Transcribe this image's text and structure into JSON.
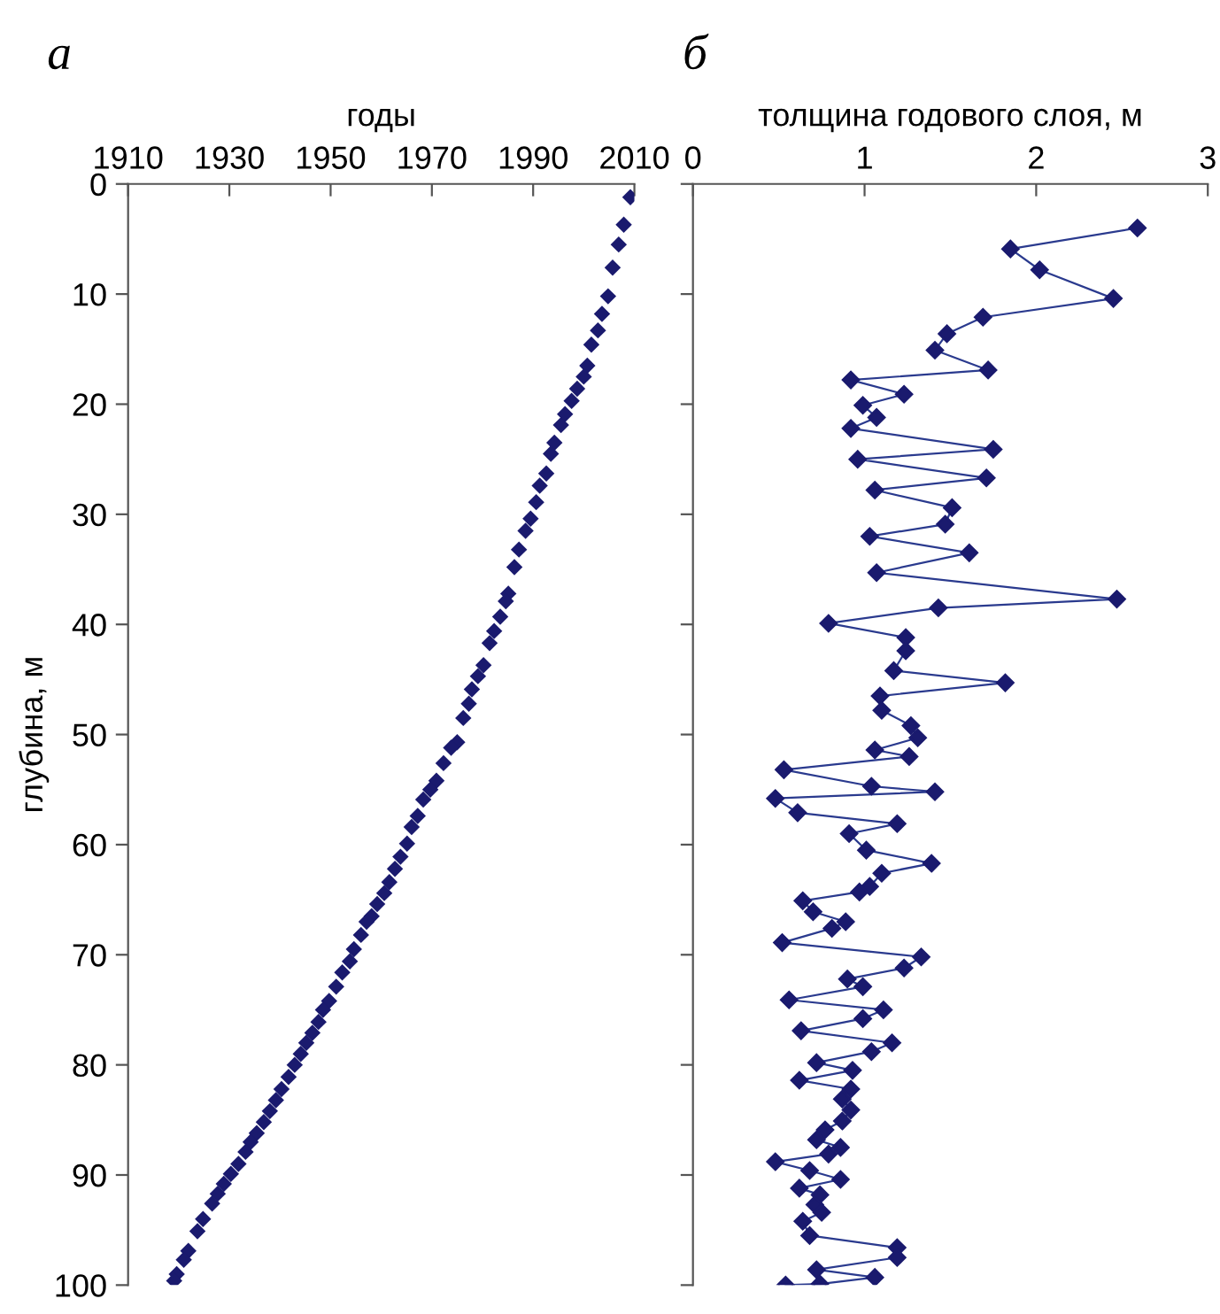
{
  "chart_data": [
    {
      "type": "scatter",
      "title": "а",
      "xlabel": "годы",
      "ylabel": "глубина, м",
      "xlim": [
        1910,
        2010
      ],
      "xticks": [
        1910,
        1930,
        1950,
        1970,
        1990,
        2010
      ],
      "ylim": [
        100,
        0
      ],
      "yticks": [
        0,
        10,
        20,
        30,
        40,
        50,
        60,
        70,
        80,
        90,
        100
      ],
      "marker": "diamond",
      "grid": false,
      "legend": false,
      "series": [
        {
          "color": "#1a1a6e",
          "x": [
            2009.2,
            2007.9,
            2006.9,
            2005.7,
            2004.8,
            2003.6,
            2002.8,
            2001.5,
            2000.7,
            2000.0,
            1998.7,
            1997.6,
            1996.3,
            1995.5,
            1994.2,
            1993.5,
            1992.6,
            1991.3,
            1990.6,
            1989.5,
            1988.5,
            1987.2,
            1986.3,
            1985.1,
            1984.6,
            1983.5,
            1982.3,
            1981.4,
            1980.2,
            1979.1,
            1977.9,
            1977.3,
            1976.2,
            1975.0,
            1973.8,
            1972.3,
            1970.9,
            1969.7,
            1968.3,
            1967.2,
            1966.0,
            1965.1,
            1963.8,
            1962.7,
            1961.6,
            1960.6,
            1959.2,
            1958.1,
            1957.1,
            1956.0,
            1954.6,
            1953.8,
            1952.3,
            1951.1,
            1949.7,
            1948.5,
            1947.6,
            1946.4,
            1945.2,
            1944.1,
            1942.9,
            1941.7,
            1940.3,
            1939.2,
            1938.0,
            1936.8,
            1935.4,
            1934.2,
            1933.2,
            1931.8,
            1930.3,
            1928.9,
            1927.7,
            1926.6,
            1924.8,
            1923.7,
            1921.9,
            1921.0,
            1919.6,
            1919.1
          ],
          "values": [
            1.2,
            3.7,
            5.5,
            7.6,
            10.2,
            11.8,
            13.3,
            14.6,
            16.5,
            17.5,
            18.6,
            19.7,
            20.9,
            21.9,
            23.5,
            24.5,
            26.3,
            27.4,
            28.9,
            30.4,
            31.5,
            33.2,
            34.8,
            37.2,
            37.9,
            39.3,
            40.6,
            41.7,
            43.7,
            44.7,
            45.9,
            47.2,
            48.5,
            50.7,
            51.2,
            52.6,
            54.2,
            55.0,
            55.9,
            57.4,
            58.4,
            59.9,
            61.1,
            62.2,
            63.4,
            64.4,
            65.4,
            66.5,
            67.0,
            68.2,
            69.5,
            70.6,
            71.6,
            72.9,
            74.2,
            75.0,
            76.1,
            77.1,
            78.0,
            79.0,
            80.0,
            81.1,
            82.2,
            83.2,
            84.2,
            85.2,
            86.2,
            87.0,
            87.9,
            89.0,
            89.9,
            90.8,
            91.7,
            92.6,
            94.0,
            95.1,
            96.9,
            97.7,
            99.0,
            99.6
          ]
        }
      ]
    },
    {
      "type": "line",
      "title": "б",
      "xlabel": "толщина годового слоя, м",
      "xlim": [
        0,
        3
      ],
      "xticks": [
        0,
        1,
        2,
        3
      ],
      "ylim": [
        100,
        0
      ],
      "yticks": [
        0,
        10,
        20,
        30,
        40,
        50,
        60,
        70,
        80,
        90,
        100
      ],
      "tick_labels": "x",
      "marker": "diamond",
      "line_style": "solid",
      "grid": false,
      "legend": false,
      "series": [
        {
          "color": "#2a3a8e",
          "x": [
            2.59,
            1.85,
            2.02,
            2.45,
            1.69,
            1.48,
            1.41,
            1.72,
            0.92,
            1.23,
            0.99,
            1.07,
            0.92,
            1.75,
            0.96,
            1.71,
            1.06,
            1.51,
            1.47,
            1.03,
            1.61,
            1.07,
            2.47,
            1.43,
            0.79,
            1.24,
            1.24,
            1.17,
            1.82,
            1.09,
            1.1,
            1.27,
            1.31,
            1.06,
            1.26,
            0.53,
            1.04,
            1.41,
            0.48,
            0.61,
            1.19,
            0.91,
            1.01,
            1.39,
            1.1,
            1.03,
            0.97,
            0.64,
            0.7,
            0.89,
            0.81,
            0.52,
            1.33,
            1.23,
            0.9,
            0.99,
            0.56,
            1.11,
            0.99,
            0.63,
            1.16,
            1.04,
            0.72,
            0.93,
            0.62,
            0.92,
            0.87,
            0.92,
            0.87,
            0.77,
            0.72,
            0.86,
            0.79,
            0.48,
            0.68,
            0.86,
            0.62,
            0.74,
            0.71,
            0.75,
            0.64,
            0.68,
            1.19,
            1.19,
            0.72,
            1.06,
            0.74,
            0.54
          ],
          "values": [
            4.0,
            5.9,
            7.8,
            10.4,
            12.1,
            13.6,
            15.1,
            16.9,
            17.8,
            19.1,
            20.1,
            21.2,
            22.2,
            24.1,
            25.0,
            26.7,
            27.8,
            29.4,
            30.9,
            32.0,
            33.5,
            35.3,
            37.7,
            38.5,
            39.9,
            41.2,
            42.4,
            44.2,
            45.3,
            46.5,
            47.8,
            49.2,
            50.3,
            51.4,
            52.0,
            53.2,
            54.7,
            55.2,
            55.8,
            57.1,
            58.1,
            59.0,
            60.5,
            61.7,
            62.6,
            63.8,
            64.3,
            65.1,
            66.1,
            67.0,
            67.6,
            68.9,
            70.2,
            71.2,
            72.2,
            72.9,
            74.1,
            75.0,
            75.8,
            76.9,
            78.0,
            78.8,
            79.8,
            80.5,
            81.4,
            82.2,
            83.1,
            84.1,
            85.1,
            85.9,
            86.8,
            87.5,
            88.1,
            88.8,
            89.6,
            90.4,
            91.2,
            91.8,
            92.7,
            93.4,
            94.2,
            95.5,
            96.6,
            97.5,
            98.6,
            99.3,
            99.9,
            100.0
          ]
        }
      ]
    }
  ]
}
